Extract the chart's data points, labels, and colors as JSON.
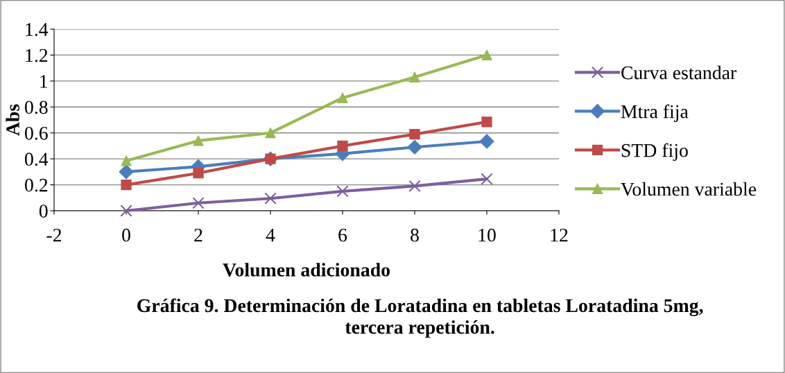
{
  "chart_data": {
    "type": "line",
    "xlabel": "Volumen adicionado",
    "ylabel": "Abs",
    "x": [
      0,
      2,
      4,
      6,
      8,
      10
    ],
    "series": [
      {
        "name": "Curva estandar",
        "color": "#7e5ea0",
        "marker": "cross",
        "values": [
          0,
          0.06,
          0.095,
          0.15,
          0.19,
          0.245
        ]
      },
      {
        "name": "Mtra fija",
        "color": "#4a7ebb",
        "marker": "diamond",
        "values": [
          0.3,
          0.34,
          0.4,
          0.44,
          0.49,
          0.535
        ]
      },
      {
        "name": "STD fijo",
        "color": "#be4b48",
        "marker": "square",
        "values": [
          0.2,
          0.29,
          0.4,
          0.5,
          0.59,
          0.685
        ]
      },
      {
        "name": "Volumen variable",
        "color": "#98b954",
        "marker": "triangle",
        "values": [
          0.385,
          0.54,
          0.6,
          0.87,
          1.03,
          1.2
        ]
      }
    ],
    "xlim": [
      -2,
      12
    ],
    "xticks": [
      -2,
      0,
      2,
      4,
      6,
      8,
      10,
      12
    ],
    "ylim": [
      0,
      1.4
    ],
    "yticks": [
      0,
      0.2,
      0.4,
      0.6,
      0.8,
      1,
      1.2,
      1.4
    ],
    "grid": "y",
    "legend": "right",
    "line_style": "solid",
    "annotations": [
      "Gráfica 9. Determinación de Loratadina en tabletas Loratadina 5mg,\ntercera repetición."
    ]
  }
}
